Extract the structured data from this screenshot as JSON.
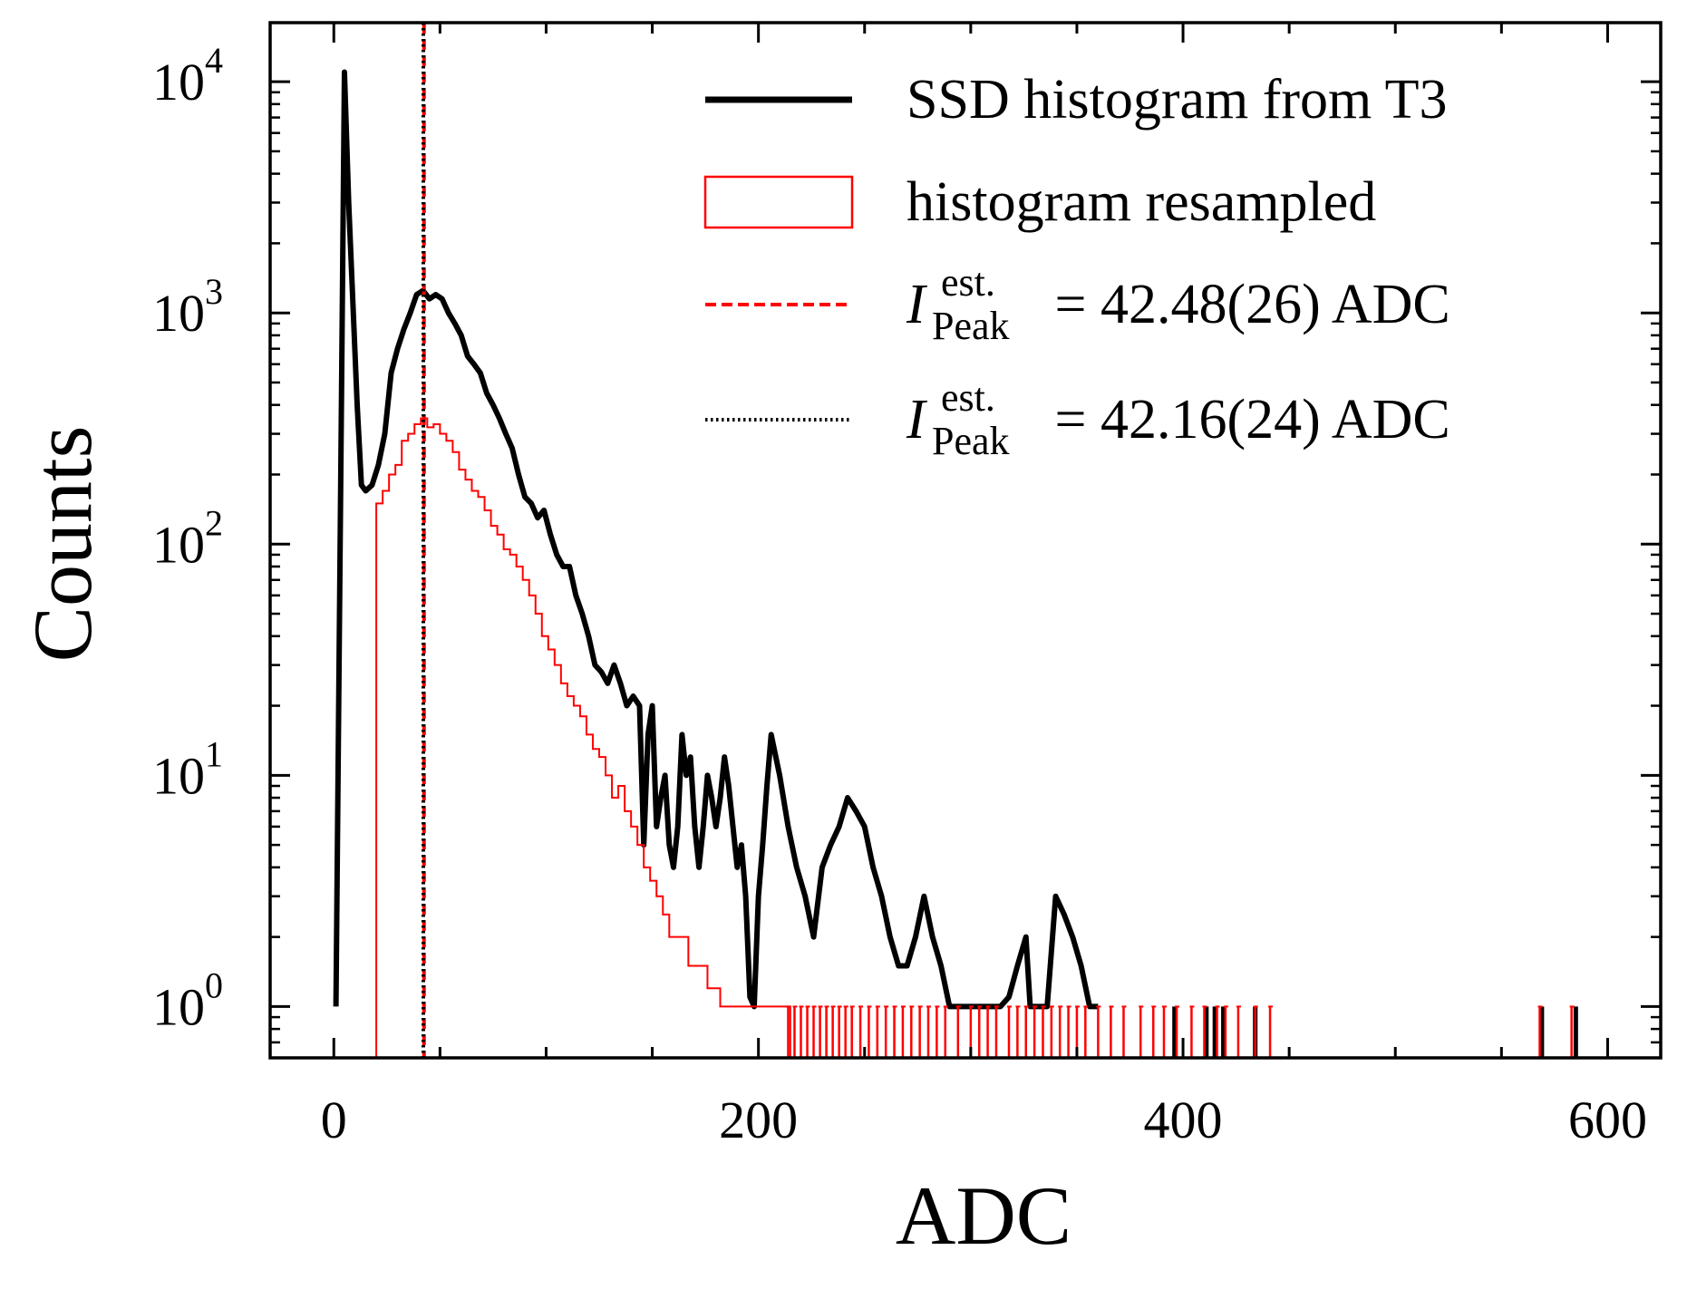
{
  "chart_data": {
    "type": "line",
    "xlabel": "ADC",
    "ylabel": "Counts",
    "xlim": [
      -30,
      625
    ],
    "ylim": [
      0.6,
      18000
    ],
    "yscale": "log",
    "grid": false,
    "legend_position": "top-right",
    "x_ticks": [
      0,
      200,
      400,
      600
    ],
    "x_tick_labels": [
      "0",
      "200",
      "400",
      "600"
    ],
    "y_ticks": [
      1,
      10,
      100,
      1000,
      10000
    ],
    "y_tick_labels": [
      {
        "base": "10",
        "exp": "0"
      },
      {
        "base": "10",
        "exp": "1"
      },
      {
        "base": "10",
        "exp": "2"
      },
      {
        "base": "10",
        "exp": "3"
      },
      {
        "base": "10",
        "exp": "4"
      }
    ],
    "legend": [
      {
        "key": "black",
        "style": "solid-line",
        "color": "#000000",
        "text": "SSD histogram from T3"
      },
      {
        "key": "red",
        "style": "outline-box",
        "color": "#ff0000",
        "text": "histogram resampled"
      },
      {
        "key": "red_line",
        "style": "dashed-line",
        "color": "#ff0000",
        "symbol": "I",
        "sup": "est.",
        "sub": "Peak",
        "rest": " = 42.48(26) ADC"
      },
      {
        "key": "black_line",
        "style": "dotted-line",
        "color": "#000000",
        "symbol": "I",
        "sup": "est.",
        "sub": "Peak",
        "rest": " = 42.16(24) ADC"
      }
    ],
    "vlines": [
      {
        "x": 42.48,
        "color": "#ff0000",
        "style": "dashed"
      },
      {
        "x": 42.16,
        "color": "#000000",
        "style": "dotted"
      }
    ],
    "series": [
      {
        "name": "SSD histogram from T3",
        "color": "#000000",
        "style": "line",
        "points": [
          [
            1,
            1
          ],
          [
            5,
            11000
          ],
          [
            7,
            3000
          ],
          [
            11,
            400
          ],
          [
            13,
            180
          ],
          [
            15,
            170
          ],
          [
            18,
            180
          ],
          [
            21,
            220
          ],
          [
            24,
            300
          ],
          [
            27,
            550
          ],
          [
            30,
            700
          ],
          [
            33,
            850
          ],
          [
            36,
            1000
          ],
          [
            39,
            1200
          ],
          [
            42,
            1250
          ],
          [
            45,
            1150
          ],
          [
            48,
            1200
          ],
          [
            51,
            1150
          ],
          [
            54,
            1000
          ],
          [
            57,
            900
          ],
          [
            60,
            800
          ],
          [
            63,
            650
          ],
          [
            66,
            600
          ],
          [
            69,
            550
          ],
          [
            72,
            450
          ],
          [
            75,
            400
          ],
          [
            78,
            350
          ],
          [
            81,
            300
          ],
          [
            84,
            260
          ],
          [
            87,
            200
          ],
          [
            90,
            160
          ],
          [
            93,
            150
          ],
          [
            96,
            130
          ],
          [
            99,
            140
          ],
          [
            102,
            110
          ],
          [
            105,
            90
          ],
          [
            108,
            80
          ],
          [
            111,
            80
          ],
          [
            114,
            60
          ],
          [
            117,
            50
          ],
          [
            120,
            40
          ],
          [
            123,
            30
          ],
          [
            126,
            28
          ],
          [
            129,
            25
          ],
          [
            132,
            30
          ],
          [
            135,
            25
          ],
          [
            138,
            20
          ],
          [
            141,
            22
          ],
          [
            144,
            20
          ],
          [
            146,
            5
          ],
          [
            148,
            15
          ],
          [
            150,
            20
          ],
          [
            152,
            6
          ],
          [
            154,
            8
          ],
          [
            156,
            10
          ],
          [
            158,
            5
          ],
          [
            160,
            4
          ],
          [
            162,
            6
          ],
          [
            164,
            15
          ],
          [
            166,
            10
          ],
          [
            168,
            12
          ],
          [
            170,
            6
          ],
          [
            172,
            4
          ],
          [
            174,
            6
          ],
          [
            176,
            10
          ],
          [
            178,
            8
          ],
          [
            180,
            6
          ],
          [
            182,
            8
          ],
          [
            184,
            12
          ],
          [
            186,
            9
          ],
          [
            188,
            6
          ],
          [
            190,
            4
          ],
          [
            192,
            5
          ],
          [
            194,
            3
          ],
          [
            196,
            1.1
          ],
          [
            198,
            1
          ],
          [
            200,
            3
          ],
          [
            202,
            5
          ],
          [
            204,
            9
          ],
          [
            206,
            15
          ],
          [
            210,
            10
          ],
          [
            214,
            6
          ],
          [
            218,
            4
          ],
          [
            222,
            3
          ],
          [
            226,
            2
          ],
          [
            230,
            4
          ],
          [
            234,
            5
          ],
          [
            238,
            6
          ],
          [
            242,
            8
          ],
          [
            246,
            7
          ],
          [
            250,
            6
          ],
          [
            254,
            4
          ],
          [
            258,
            3
          ],
          [
            262,
            2
          ],
          [
            266,
            1.5
          ],
          [
            270,
            1.5
          ],
          [
            274,
            2
          ],
          [
            278,
            3
          ],
          [
            282,
            2
          ],
          [
            286,
            1.5
          ],
          [
            290,
            1
          ],
          [
            294,
            1
          ],
          [
            298,
            1
          ],
          [
            302,
            1
          ],
          [
            306,
            1
          ],
          [
            310,
            1
          ],
          [
            314,
            1
          ],
          [
            318,
            1.1
          ],
          [
            322,
            1.5
          ],
          [
            326,
            2
          ],
          [
            328,
            1
          ],
          [
            330,
            1
          ],
          [
            334,
            1
          ],
          [
            336,
            1
          ],
          [
            340,
            3
          ],
          [
            344,
            2.5
          ],
          [
            348,
            2
          ],
          [
            352,
            1.5
          ],
          [
            356,
            1
          ],
          [
            360,
            1
          ]
        ],
        "spikes": [
          396,
          411,
          415,
          419,
          434,
          569,
          585
        ]
      },
      {
        "name": "histogram resampled",
        "color": "#ff0000",
        "style": "step",
        "points": [
          [
            20,
            150
          ],
          [
            23,
            170
          ],
          [
            26,
            200
          ],
          [
            29,
            220
          ],
          [
            32,
            280
          ],
          [
            35,
            300
          ],
          [
            38,
            330
          ],
          [
            41,
            350
          ],
          [
            44,
            320
          ],
          [
            47,
            330
          ],
          [
            50,
            300
          ],
          [
            53,
            280
          ],
          [
            56,
            250
          ],
          [
            59,
            210
          ],
          [
            62,
            190
          ],
          [
            65,
            170
          ],
          [
            68,
            160
          ],
          [
            71,
            140
          ],
          [
            74,
            120
          ],
          [
            77,
            110
          ],
          [
            80,
            95
          ],
          [
            83,
            90
          ],
          [
            86,
            80
          ],
          [
            89,
            70
          ],
          [
            92,
            60
          ],
          [
            95,
            50
          ],
          [
            98,
            40
          ],
          [
            101,
            35
          ],
          [
            104,
            30
          ],
          [
            107,
            25
          ],
          [
            110,
            22
          ],
          [
            113,
            20
          ],
          [
            116,
            18
          ],
          [
            119,
            15
          ],
          [
            122,
            13
          ],
          [
            125,
            12
          ],
          [
            128,
            10
          ],
          [
            131,
            8
          ],
          [
            134,
            9
          ],
          [
            137,
            7
          ],
          [
            140,
            6
          ],
          [
            143,
            5
          ],
          [
            146,
            4
          ],
          [
            149,
            3.5
          ],
          [
            152,
            3
          ],
          [
            155,
            2.5
          ],
          [
            158,
            2
          ],
          [
            161,
            2
          ],
          [
            164,
            2
          ],
          [
            167,
            1.5
          ],
          [
            170,
            1.5
          ],
          [
            173,
            1.5
          ],
          [
            176,
            1.2
          ],
          [
            179,
            1.2
          ],
          [
            182,
            1
          ],
          [
            185,
            1
          ],
          [
            188,
            1
          ],
          [
            191,
            1
          ],
          [
            194,
            1
          ],
          [
            197,
            1
          ],
          [
            200,
            1
          ],
          [
            203,
            1
          ],
          [
            206,
            1
          ],
          [
            209,
            1
          ],
          [
            212,
            1
          ]
        ],
        "spikes": [
          214,
          217,
          220,
          223,
          226,
          229,
          232,
          235,
          238,
          241,
          244,
          248,
          252,
          256,
          260,
          264,
          268,
          272,
          276,
          280,
          284,
          288,
          294,
          300,
          304,
          308,
          312,
          318,
          322,
          326,
          330,
          334,
          338,
          342,
          346,
          350,
          354,
          360,
          366,
          372,
          380,
          386,
          391,
          397,
          404,
          410,
          416,
          420,
          426,
          434,
          441,
          568,
          583
        ]
      }
    ]
  }
}
